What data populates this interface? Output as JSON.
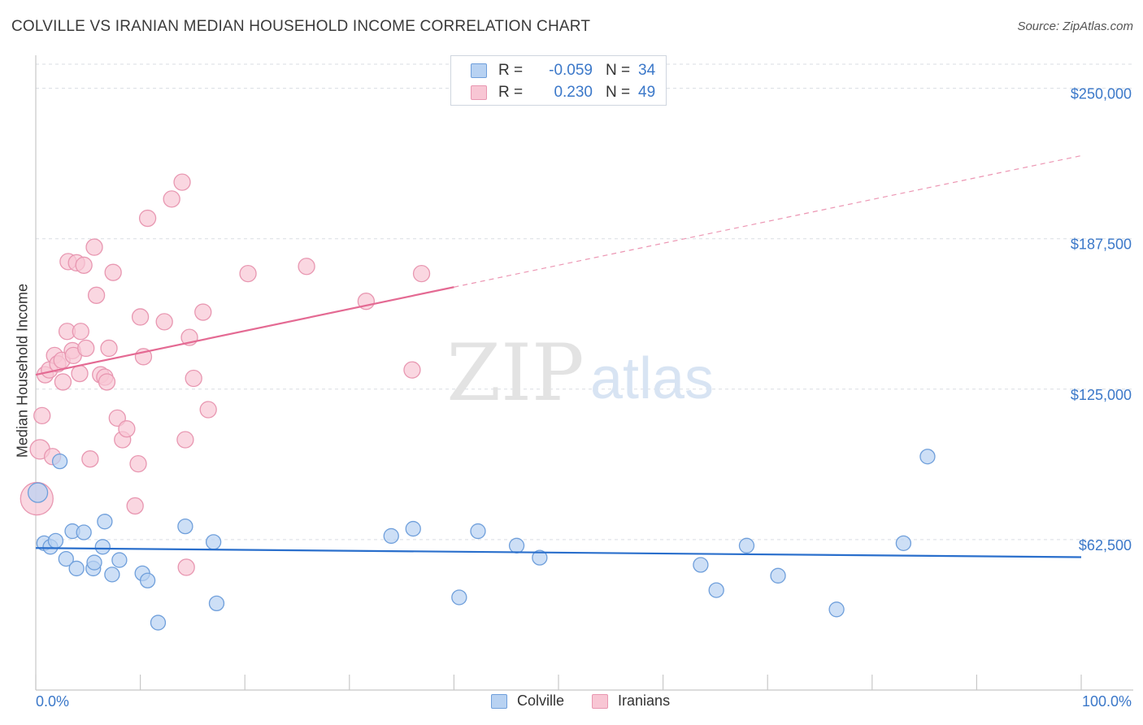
{
  "header": {
    "title": "COLVILLE VS IRANIAN MEDIAN HOUSEHOLD INCOME CORRELATION CHART",
    "source": "Source: ZipAtlas.com"
  },
  "watermark": {
    "zip": "ZIP",
    "atlas": "atlas"
  },
  "legend_top": {
    "rows": [
      {
        "r_label": "R =",
        "r_value": "-0.059",
        "n_label": "N =",
        "n_value": "34"
      },
      {
        "r_label": "R =",
        "r_value": "0.230",
        "n_label": "N =",
        "n_value": "49"
      }
    ]
  },
  "legend_bottom": {
    "series": [
      "Colville",
      "Iranians"
    ]
  },
  "colors": {
    "colville_fill": "#b8d2f2",
    "colville_stroke": "#6f9fdb",
    "colville_line": "#2a6fcc",
    "iranians_fill": "#f8c6d4",
    "iranians_stroke": "#e897b1",
    "iranians_line": "#e46a93",
    "axis_text": "#3b78c9",
    "grid": "#d9dde3"
  },
  "chart_data": {
    "type": "scatter",
    "title": "COLVILLE VS IRANIAN MEDIAN HOUSEHOLD INCOME CORRELATION CHART",
    "xlabel": "",
    "ylabel": "Median Household Income",
    "xlim": [
      0,
      100
    ],
    "ylim": [
      0,
      260000
    ],
    "x_tick_labels": [
      "0.0%",
      "100.0%"
    ],
    "y_ticks": [
      {
        "value": 62500,
        "label": "$62,500"
      },
      {
        "value": 125000,
        "label": "$125,000"
      },
      {
        "value": 187500,
        "label": "$187,500"
      },
      {
        "value": 250000,
        "label": "$250,000"
      }
    ],
    "series": [
      {
        "name": "Colville",
        "r": -0.059,
        "n": 34,
        "trend": {
          "x0": 0,
          "y0": 59000,
          "x1": 100,
          "y1": 55200,
          "solid_until": 100
        },
        "points": [
          [
            0.2,
            82000,
            12
          ],
          [
            0.8,
            61000,
            9
          ],
          [
            1.4,
            59500,
            9
          ],
          [
            1.9,
            62000,
            9
          ],
          [
            2.3,
            95000,
            9
          ],
          [
            2.9,
            54500,
            9
          ],
          [
            3.5,
            66000,
            9
          ],
          [
            3.9,
            50500,
            9
          ],
          [
            4.6,
            65500,
            9
          ],
          [
            5.5,
            50500,
            9
          ],
          [
            5.6,
            53000,
            9
          ],
          [
            6.4,
            59500,
            9
          ],
          [
            6.6,
            70000,
            9
          ],
          [
            7.3,
            48000,
            9
          ],
          [
            8.0,
            54000,
            9
          ],
          [
            10.2,
            48500,
            9
          ],
          [
            10.7,
            45500,
            9
          ],
          [
            11.7,
            28000,
            9
          ],
          [
            14.3,
            68000,
            9
          ],
          [
            17.0,
            61500,
            9
          ],
          [
            17.3,
            36000,
            9
          ],
          [
            34.0,
            64000,
            9
          ],
          [
            36.1,
            67000,
            9
          ],
          [
            40.5,
            38500,
            9
          ],
          [
            42.3,
            66000,
            9
          ],
          [
            46.0,
            60000,
            9
          ],
          [
            48.2,
            55000,
            9
          ],
          [
            63.6,
            52000,
            9
          ],
          [
            65.1,
            41500,
            9
          ],
          [
            68.0,
            60000,
            9
          ],
          [
            71.0,
            47500,
            9
          ],
          [
            76.6,
            33500,
            9
          ],
          [
            83.0,
            61000,
            9
          ],
          [
            85.3,
            97000,
            9
          ]
        ]
      },
      {
        "name": "Iranians",
        "r": 0.23,
        "n": 49,
        "trend": {
          "x0": 0,
          "y0": 131000,
          "x1": 100,
          "y1": 222000,
          "solid_until": 40
        },
        "points": [
          [
            0.1,
            79500,
            20
          ],
          [
            0.4,
            100000,
            12
          ],
          [
            0.6,
            114000,
            10
          ],
          [
            0.9,
            131000,
            10
          ],
          [
            1.3,
            133000,
            10
          ],
          [
            1.6,
            97000,
            10
          ],
          [
            1.8,
            139000,
            10
          ],
          [
            2.1,
            135500,
            10
          ],
          [
            2.5,
            137000,
            10
          ],
          [
            2.6,
            128000,
            10
          ],
          [
            3.0,
            149000,
            10
          ],
          [
            3.1,
            178000,
            10
          ],
          [
            3.5,
            141000,
            10
          ],
          [
            3.6,
            139000,
            10
          ],
          [
            3.9,
            177500,
            10
          ],
          [
            4.2,
            131500,
            10
          ],
          [
            4.3,
            149000,
            10
          ],
          [
            4.6,
            176500,
            10
          ],
          [
            4.8,
            142000,
            10
          ],
          [
            5.2,
            96000,
            10
          ],
          [
            5.6,
            184000,
            10
          ],
          [
            5.8,
            164000,
            10
          ],
          [
            6.2,
            131000,
            10
          ],
          [
            6.6,
            130000,
            10
          ],
          [
            6.8,
            128000,
            10
          ],
          [
            7.0,
            142000,
            10
          ],
          [
            7.4,
            173500,
            10
          ],
          [
            7.8,
            113000,
            10
          ],
          [
            8.3,
            104000,
            10
          ],
          [
            8.7,
            108500,
            10
          ],
          [
            9.5,
            76500,
            10
          ],
          [
            9.8,
            94000,
            10
          ],
          [
            10.0,
            155000,
            10
          ],
          [
            10.3,
            138500,
            10
          ],
          [
            10.7,
            196000,
            10
          ],
          [
            12.3,
            153000,
            10
          ],
          [
            13.0,
            204000,
            10
          ],
          [
            14.0,
            211000,
            10
          ],
          [
            14.3,
            104000,
            10
          ],
          [
            14.4,
            51000,
            10
          ],
          [
            14.7,
            146500,
            10
          ],
          [
            15.1,
            129500,
            10
          ],
          [
            16.0,
            157000,
            10
          ],
          [
            16.5,
            116500,
            10
          ],
          [
            20.3,
            173000,
            10
          ],
          [
            25.9,
            176000,
            10
          ],
          [
            31.6,
            161500,
            10
          ],
          [
            36.0,
            133000,
            10
          ],
          [
            36.9,
            173000,
            10
          ]
        ]
      }
    ]
  }
}
